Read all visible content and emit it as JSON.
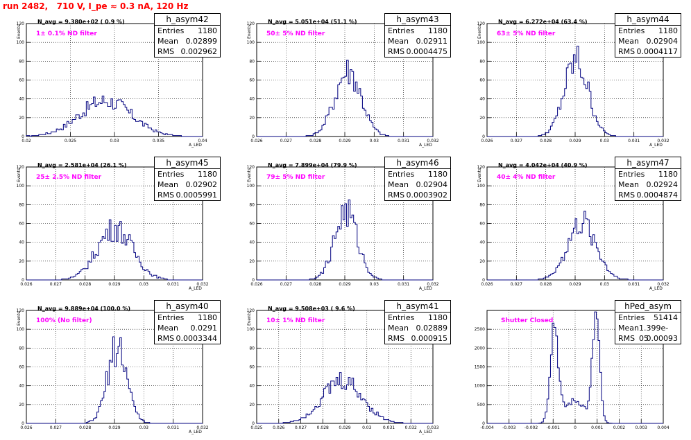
{
  "page_title": "run 2482,   710 V, I_pe ≈ 0.3 nA, 120 Hz",
  "colors": {
    "histogram": "#00007f",
    "grid": "#000000",
    "filter_label": "#ff00ff",
    "run_title": "#ff0000"
  },
  "chart_data": [
    {
      "type": "histogram",
      "name": "h_asym42",
      "navg": "N_avg = 9.380e+02 ( 0.9 %)",
      "filter": "1± 0.1% ND filter",
      "stats": {
        "entries_label": "Entries",
        "entries": "1180",
        "mean_label": "Mean",
        "mean": "0.02899",
        "rms_label": "RMS",
        "rms": "0.002962"
      },
      "xlabel": "A_LED",
      "ylabel": "Events",
      "xlim": [
        0.02,
        0.04
      ],
      "ylim": [
        0,
        120
      ],
      "xticks": [
        "0.02",
        "0.025",
        "0.03",
        "0.035",
        "0.04"
      ],
      "yticks": [
        "0",
        "20",
        "40",
        "60",
        "80",
        "100",
        "120"
      ],
      "mean_val": 0.02899,
      "rms_val": 0.002962,
      "peak": 38,
      "grid": true
    },
    {
      "type": "histogram",
      "name": "h_asym43",
      "navg": "N_avg = 5.051e+04 (51.1 %)",
      "filter": "50± 5% ND filter",
      "stats": {
        "entries_label": "Entries",
        "entries": "1180",
        "mean_label": "Mean",
        "mean": "0.02911",
        "rms_label": "RMS",
        "rms": "0.0004475"
      },
      "xlabel": "A_LED",
      "ylabel": "Events",
      "xlim": [
        0.026,
        0.032
      ],
      "ylim": [
        0,
        120
      ],
      "xticks": [
        "0.026",
        "0.027",
        "0.028",
        "0.029",
        "0.03",
        "0.031",
        "0.032"
      ],
      "yticks": [
        "0",
        "20",
        "40",
        "60",
        "80",
        "100",
        "120"
      ],
      "mean_val": 0.02911,
      "rms_val": 0.0004475,
      "peak": 70,
      "grid": true
    },
    {
      "type": "histogram",
      "name": "h_asym44",
      "navg": "N_avg = 6.272e+04 (63.4 %)",
      "filter": "63± 5% ND filter",
      "stats": {
        "entries_label": "Entries",
        "entries": "1180",
        "mean_label": "Mean",
        "mean": "0.02904",
        "rms_label": "RMS",
        "rms": "0.0004117"
      },
      "xlabel": "A_LED",
      "ylabel": "Events",
      "xlim": [
        0.026,
        0.032
      ],
      "ylim": [
        0,
        120
      ],
      "xticks": [
        "0.026",
        "0.027",
        "0.028",
        "0.029",
        "0.03",
        "0.031",
        "0.032"
      ],
      "yticks": [
        "0",
        "20",
        "40",
        "60",
        "80",
        "100",
        "120"
      ],
      "mean_val": 0.02904,
      "rms_val": 0.0004117,
      "peak": 80,
      "grid": true
    },
    {
      "type": "histogram",
      "name": "h_asym45",
      "navg": "N_avg = 2.581e+04 (26.1 %)",
      "filter": "25± 2.5% ND filter",
      "stats": {
        "entries_label": "Entries",
        "entries": "1180",
        "mean_label": "Mean",
        "mean": "0.02902",
        "rms_label": "RMS",
        "rms": "0.0005991"
      },
      "xlabel": "A_LED",
      "ylabel": "Events",
      "xlim": [
        0.026,
        0.032
      ],
      "ylim": [
        0,
        120
      ],
      "xticks": [
        "0.026",
        "0.027",
        "0.028",
        "0.029",
        "0.03",
        "0.031",
        "0.032"
      ],
      "yticks": [
        "0",
        "20",
        "40",
        "60",
        "80",
        "100",
        "120"
      ],
      "mean_val": 0.02902,
      "rms_val": 0.0005991,
      "peak": 55,
      "grid": true
    },
    {
      "type": "histogram",
      "name": "h_asym46",
      "navg": "N_avg = 7.899e+04 (79.9 %)",
      "filter": "79± 5% ND filter",
      "stats": {
        "entries_label": "Entries",
        "entries": "1180",
        "mean_label": "Mean",
        "mean": "0.02904",
        "rms_label": "RMS",
        "rms": "0.0003902"
      },
      "xlabel": "A_LED",
      "ylabel": "Events",
      "xlim": [
        0.026,
        0.032
      ],
      "ylim": [
        0,
        120
      ],
      "xticks": [
        "0.026",
        "0.027",
        "0.028",
        "0.029",
        "0.03",
        "0.031",
        "0.032"
      ],
      "yticks": [
        "0",
        "20",
        "40",
        "60",
        "80",
        "100",
        "120"
      ],
      "mean_val": 0.02904,
      "rms_val": 0.0003902,
      "peak": 72,
      "grid": true
    },
    {
      "type": "histogram",
      "name": "h_asym47",
      "navg": "N_avg = 4.042e+04 (40.9 %)",
      "filter": "40± 4% ND filter",
      "stats": {
        "entries_label": "Entries",
        "entries": "1180",
        "mean_label": "Mean",
        "mean": "0.02924",
        "rms_label": "RMS",
        "rms": "0.0004874"
      },
      "xlabel": "A_LED",
      "ylabel": "Events",
      "xlim": [
        0.026,
        0.032
      ],
      "ylim": [
        0,
        120
      ],
      "xticks": [
        "0.026",
        "0.027",
        "0.028",
        "0.029",
        "0.03",
        "0.031",
        "0.032"
      ],
      "yticks": [
        "0",
        "20",
        "40",
        "60",
        "80",
        "100",
        "120"
      ],
      "mean_val": 0.02924,
      "rms_val": 0.0004874,
      "peak": 60,
      "grid": true
    },
    {
      "type": "histogram",
      "name": "h_asym40",
      "navg": "N_avg = 9.889e+04 (100.0 %)",
      "filter": "100% (No filter)",
      "stats": {
        "entries_label": "Entries",
        "entries": "1180",
        "mean_label": "Mean",
        "mean": "0.0291",
        "rms_label": "RMS",
        "rms": "0.0003344"
      },
      "xlabel": "A_LED",
      "ylabel": "Events",
      "xlim": [
        0.026,
        0.032
      ],
      "ylim": [
        0,
        120
      ],
      "xticks": [
        "0.026",
        "0.027",
        "0.028",
        "0.029",
        "0.03",
        "0.031",
        "0.032"
      ],
      "yticks": [
        "0",
        "20",
        "40",
        "60",
        "80",
        "100",
        "120"
      ],
      "mean_val": 0.0291,
      "rms_val": 0.0003344,
      "peak": 82,
      "grid": true
    },
    {
      "type": "histogram",
      "name": "h_asym41",
      "navg": "N_avg = 9.508e+03 ( 9.6 %)",
      "filter": "10± 1% ND filter",
      "stats": {
        "entries_label": "Entries",
        "entries": "1180",
        "mean_label": "Mean",
        "mean": "0.02889",
        "rms_label": "RMS",
        "rms": "0.000915"
      },
      "xlabel": "A_LED",
      "ylabel": "Events",
      "xlim": [
        0.025,
        0.033
      ],
      "ylim": [
        0,
        120
      ],
      "xticks": [
        "0.025",
        "0.026",
        "0.027",
        "0.028",
        "0.029",
        "0.03",
        "0.031",
        "0.032",
        "0.033"
      ],
      "yticks": [
        "0",
        "20",
        "40",
        "60",
        "80",
        "100",
        "120"
      ],
      "mean_val": 0.02889,
      "rms_val": 0.000915,
      "peak": 45,
      "grid": true
    },
    {
      "type": "histogram",
      "name": "hPed_asym",
      "navg": "",
      "filter": "Shutter Closed",
      "stats": {
        "entries_label": "Entries",
        "entries": "51414",
        "mean_label": "Mean",
        "mean": "1.399e-05",
        "rms_label": "RMS",
        "rms": "0.00093"
      },
      "xlabel": "",
      "ylabel": "",
      "xlim": [
        -0.004,
        0.004
      ],
      "ylim": [
        0,
        3000
      ],
      "xticks": [
        "-0.004",
        "-0.003",
        "-0.002",
        "-0.001",
        "0",
        "0.001",
        "0.002",
        "0.003",
        "0.004"
      ],
      "yticks": [
        "0",
        "500",
        "1000",
        "1500",
        "2000",
        "2500"
      ],
      "bimodal": true,
      "peak": 2800,
      "grid": true
    }
  ]
}
